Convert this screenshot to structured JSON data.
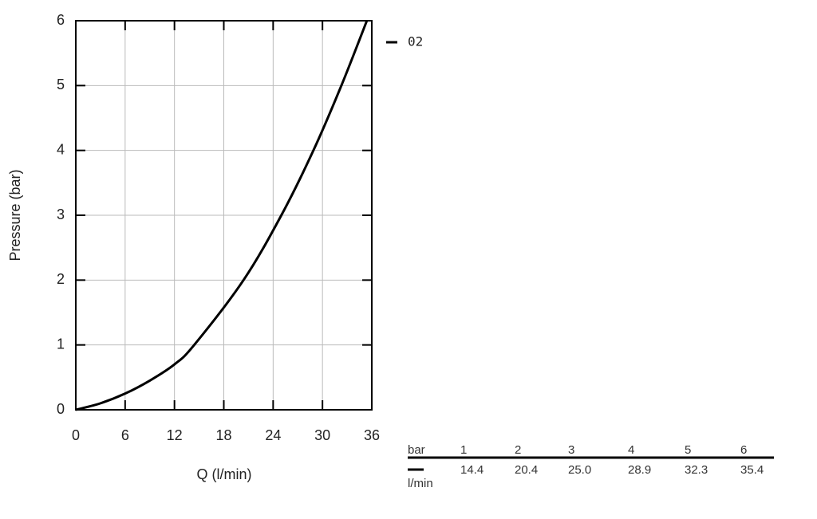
{
  "chart_data": {
    "type": "line",
    "x_label": "Q (l/min)",
    "y_label": "Pressure (bar)",
    "x": [
      0,
      3,
      6,
      9,
      12,
      14.4,
      20.4,
      25,
      28.9,
      32.3,
      35.4
    ],
    "series": [
      {
        "name": "02",
        "color": "#000000",
        "values": [
          0,
          0.1,
          0.25,
          0.45,
          0.7,
          1,
          2,
          3,
          4,
          5,
          6
        ]
      }
    ],
    "xlim": [
      0,
      36
    ],
    "ylim": [
      0,
      6
    ],
    "xticks": [
      0,
      6,
      12,
      18,
      24,
      30,
      36
    ],
    "yticks": [
      0,
      1,
      2,
      3,
      4,
      5,
      6
    ],
    "grid": true
  },
  "table": {
    "header": [
      "bar",
      "1",
      "2",
      "3",
      "4",
      "5",
      "6"
    ],
    "rows": [
      [
        "l/min",
        "14.4",
        "20.4",
        "25.0",
        "28.9",
        "32.3",
        "35.4"
      ]
    ]
  }
}
